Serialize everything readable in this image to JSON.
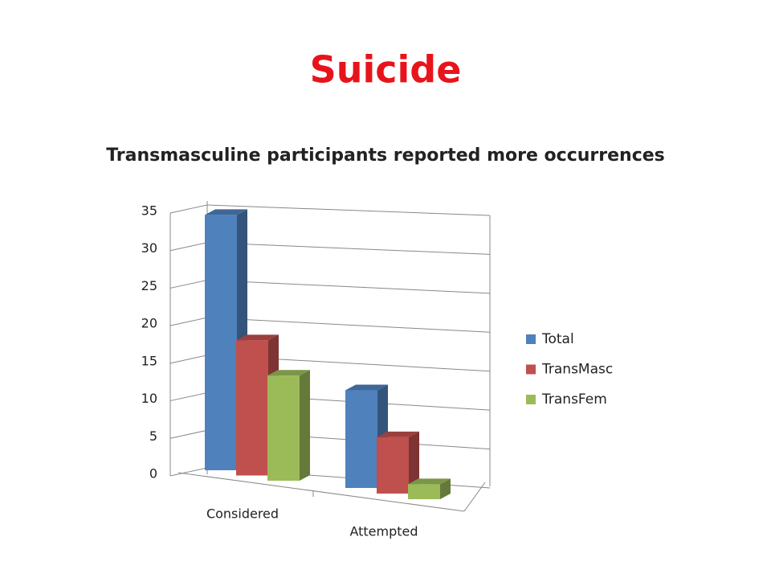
{
  "chart_data": {
    "type": "bar",
    "title": "Suicide",
    "subtitle": "Transmasculine participants reported more occurrences",
    "categories": [
      "Considered",
      "Attempted"
    ],
    "series": [
      {
        "name": "Total",
        "color": "#4f81bd",
        "values": [
          34,
          13
        ]
      },
      {
        "name": "TransMasc",
        "color": "#c0504d",
        "values": [
          18,
          7.5
        ]
      },
      {
        "name": "TransFem",
        "color": "#9bbb59",
        "values": [
          14,
          2
        ]
      }
    ],
    "ylim": [
      0,
      35
    ],
    "yticks": [
      0,
      5,
      10,
      15,
      20,
      25,
      30,
      35
    ],
    "grid": true,
    "legend": "right"
  }
}
